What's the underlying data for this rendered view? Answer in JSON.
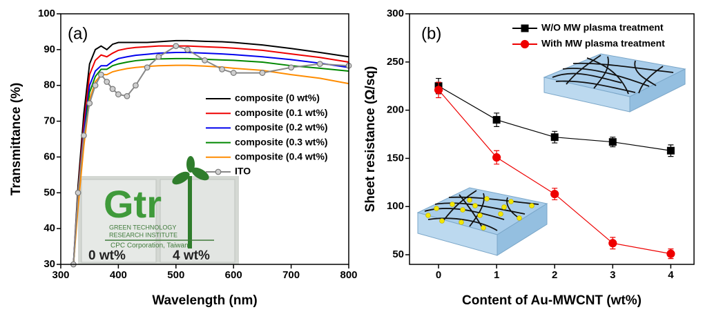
{
  "chart_data": [
    {
      "type": "line",
      "panel_label": "(a)",
      "x_label": "Wavelength (nm)",
      "y_label": "Transmittance (%)",
      "x": [
        322,
        330,
        340,
        350,
        360,
        370,
        380,
        390,
        400,
        415,
        430,
        450,
        470,
        500,
        520,
        550,
        580,
        600,
        650,
        700,
        750,
        800
      ],
      "series": [
        {
          "name": "composite (0 wt%)",
          "color": "#000000",
          "values": [
            30,
            52,
            72,
            86,
            90,
            91,
            90,
            91.5,
            92,
            92,
            92,
            92,
            92.2,
            92.5,
            92.5,
            92.3,
            92.2,
            92,
            91.3,
            90.3,
            89.2,
            88
          ]
        },
        {
          "name": "composite (0.1 wt%)",
          "color": "#ee0000",
          "values": [
            30,
            50,
            69,
            83,
            87,
            88.5,
            88,
            89,
            89.8,
            90.3,
            90.6,
            90.8,
            91,
            91,
            91,
            90.8,
            90.6,
            90.4,
            89.8,
            88.8,
            87.8,
            86.5
          ]
        },
        {
          "name": "composite (0.2 wt%)",
          "color": "#0000ee",
          "values": [
            30,
            49,
            67,
            80,
            84,
            85.5,
            85.5,
            86.7,
            87.5,
            88,
            88.4,
            88.7,
            89,
            89.2,
            89.2,
            89,
            88.8,
            88.6,
            88,
            87.2,
            86.2,
            85
          ]
        },
        {
          "name": "composite (0.3 wt%)",
          "color": "#008800",
          "values": [
            30,
            48,
            65,
            78,
            82.5,
            84.5,
            84.5,
            85.5,
            86,
            86.5,
            86.9,
            87.2,
            87.4,
            87.5,
            87.5,
            87.3,
            87.1,
            87,
            86.5,
            85.5,
            84.8,
            84
          ]
        },
        {
          "name": "composite (0.4 wt%)",
          "color": "#ff8c00",
          "values": [
            30,
            46,
            63,
            76,
            81,
            83,
            83,
            83.8,
            84.2,
            84.7,
            85,
            85.3,
            85.5,
            85.6,
            85.6,
            85.4,
            85.1,
            84.8,
            84.2,
            83,
            82,
            80.5
          ]
        },
        {
          "name": "ITO",
          "color": "#888888",
          "marker": "circle",
          "values": [
            30,
            50,
            66,
            75,
            80,
            83,
            81,
            79,
            77.5,
            77,
            80,
            85,
            88,
            91,
            90,
            87,
            84.5,
            83.5,
            83.5,
            85,
            86,
            85.5
          ]
        }
      ],
      "xlim": [
        300,
        800
      ],
      "xticks": [
        300,
        400,
        500,
        600,
        700,
        800
      ],
      "ylim": [
        30,
        100
      ],
      "yticks": [
        30,
        40,
        50,
        60,
        70,
        80,
        90,
        100
      ],
      "legend": "right",
      "inset_logo": [
        "Gtr",
        "GREEN TECHNOLOGY",
        "RESEARCH INSTITUTE",
        "CPC Corporation, Taiwan"
      ],
      "inset_labels": [
        "0 wt%",
        "4 wt%"
      ]
    },
    {
      "type": "line",
      "panel_label": "(b)",
      "x_label": "Content of Au-MWCNT (wt%)",
      "y_label": "Sheet resistance (Ω/sq)",
      "x": [
        0,
        1,
        2,
        3,
        4
      ],
      "series": [
        {
          "name": "W/O MW plasma treatment",
          "color": "#000000",
          "marker": "square",
          "values": [
            225,
            190,
            172,
            167,
            158
          ],
          "errors": [
            8,
            7,
            6,
            5,
            6
          ]
        },
        {
          "name": "With MW plasma treatment",
          "color": "#ee0000",
          "marker": "circle",
          "values": [
            221,
            151,
            113,
            62,
            51
          ],
          "errors": [
            8,
            7,
            6,
            6,
            5
          ]
        }
      ],
      "xlim": [
        -0.5,
        4.4
      ],
      "xticks": [
        0,
        1,
        2,
        3,
        4
      ],
      "ylim": [
        40,
        300
      ],
      "yticks": [
        50,
        100,
        150,
        200,
        250,
        300
      ],
      "legend": "top-right"
    }
  ]
}
